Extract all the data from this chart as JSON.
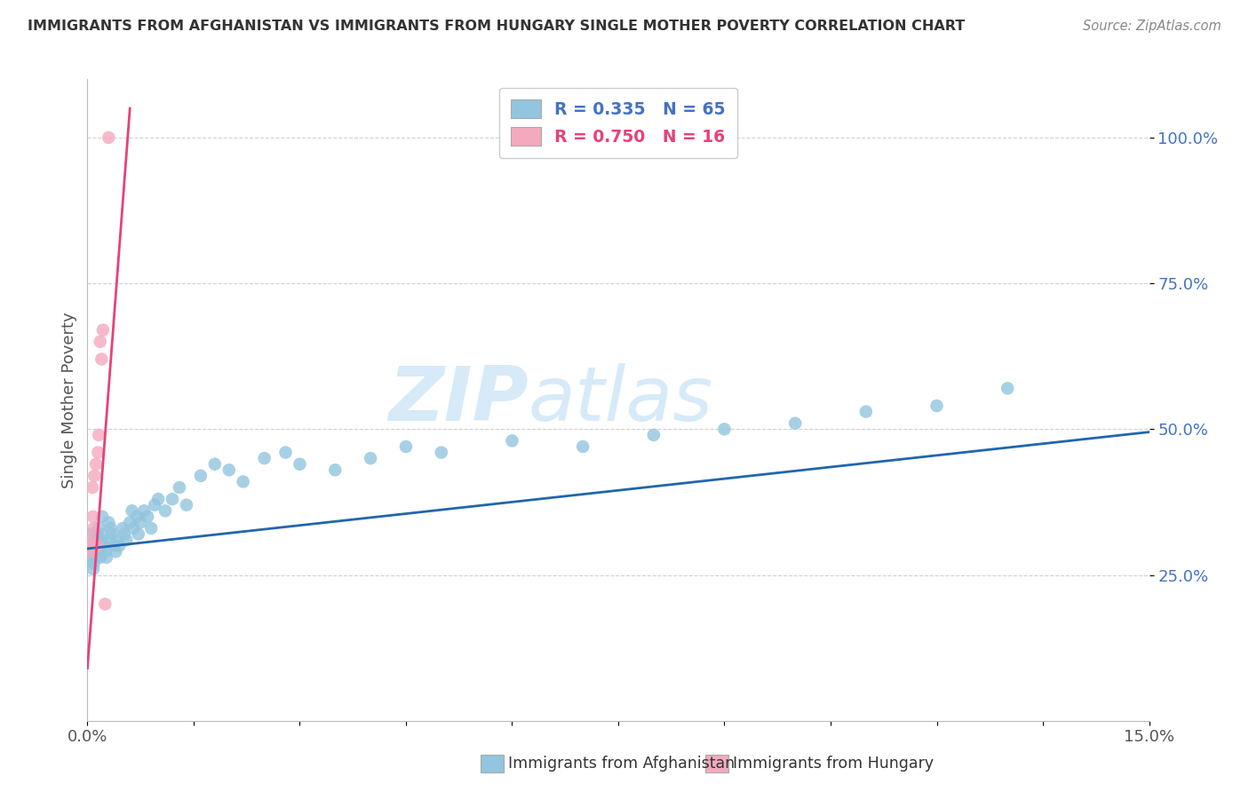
{
  "title": "IMMIGRANTS FROM AFGHANISTAN VS IMMIGRANTS FROM HUNGARY SINGLE MOTHER POVERTY CORRELATION CHART",
  "source": "Source: ZipAtlas.com",
  "ylabel": "Single Mother Poverty",
  "watermark_zip": "ZIP",
  "watermark_atlas": "atlas",
  "blue_color": "#92c5de",
  "pink_color": "#f4a9be",
  "blue_line_color": "#2166ac",
  "pink_line_color": "#e8417a",
  "ytick_color": "#4472c4",
  "xtick_color": "#555555",
  "title_color": "#333333",
  "source_color": "#888888",
  "ylabel_color": "#555555",
  "grid_color": "#cccccc",
  "bg_color": "#ffffff",
  "watermark_color": "#d6eaf8",
  "afg_x": [
    0.0004,
    0.0005,
    0.0006,
    0.0007,
    0.0008,
    0.0009,
    0.001,
    0.0012,
    0.0013,
    0.0014,
    0.0015,
    0.0016,
    0.0017,
    0.0018,
    0.002,
    0.0021,
    0.0022,
    0.0023,
    0.0025,
    0.0027,
    0.003,
    0.0032,
    0.0033,
    0.0035,
    0.0038,
    0.004,
    0.0042,
    0.0045,
    0.005,
    0.0052,
    0.0055,
    0.006,
    0.0063,
    0.0065,
    0.007,
    0.0072,
    0.0075,
    0.008,
    0.0085,
    0.009,
    0.0095,
    0.01,
    0.011,
    0.012,
    0.013,
    0.014,
    0.016,
    0.018,
    0.02,
    0.022,
    0.025,
    0.028,
    0.03,
    0.035,
    0.04,
    0.045,
    0.05,
    0.06,
    0.07,
    0.08,
    0.09,
    0.1,
    0.11,
    0.12,
    0.13
  ],
  "afg_y": [
    0.32,
    0.28,
    0.3,
    0.29,
    0.26,
    0.27,
    0.3,
    0.28,
    0.32,
    0.31,
    0.29,
    0.33,
    0.3,
    0.28,
    0.31,
    0.35,
    0.32,
    0.3,
    0.29,
    0.28,
    0.34,
    0.31,
    0.33,
    0.32,
    0.3,
    0.29,
    0.31,
    0.3,
    0.33,
    0.32,
    0.31,
    0.34,
    0.36,
    0.33,
    0.35,
    0.32,
    0.34,
    0.36,
    0.35,
    0.33,
    0.37,
    0.38,
    0.36,
    0.38,
    0.4,
    0.37,
    0.42,
    0.44,
    0.43,
    0.41,
    0.45,
    0.46,
    0.44,
    0.43,
    0.45,
    0.47,
    0.46,
    0.48,
    0.47,
    0.49,
    0.5,
    0.51,
    0.53,
    0.54,
    0.57
  ],
  "hun_x": [
    0.0003,
    0.0005,
    0.0006,
    0.0007,
    0.0008,
    0.0009,
    0.001,
    0.0012,
    0.0014,
    0.0015,
    0.0016,
    0.0018,
    0.002,
    0.0022,
    0.0025,
    0.003
  ],
  "hun_y": [
    0.3,
    0.31,
    0.29,
    0.4,
    0.35,
    0.33,
    0.42,
    0.44,
    0.3,
    0.46,
    0.49,
    0.65,
    0.62,
    0.67,
    0.2,
    1.0
  ],
  "hun_line_x0": 0.0,
  "hun_line_x1": 0.006,
  "afg_line_x0": 0.0,
  "afg_line_x1": 0.15,
  "afg_line_y0": 0.295,
  "afg_line_y1": 0.495,
  "hun_line_y0": 0.09,
  "hun_line_y1": 1.05,
  "xlim": [
    0.0,
    0.15
  ],
  "ylim": [
    0.0,
    1.1
  ],
  "xticks": [
    0.0,
    0.015,
    0.03,
    0.045,
    0.06,
    0.075,
    0.09,
    0.105,
    0.12,
    0.135,
    0.15
  ],
  "yticks": [
    0.25,
    0.5,
    0.75,
    1.0
  ]
}
